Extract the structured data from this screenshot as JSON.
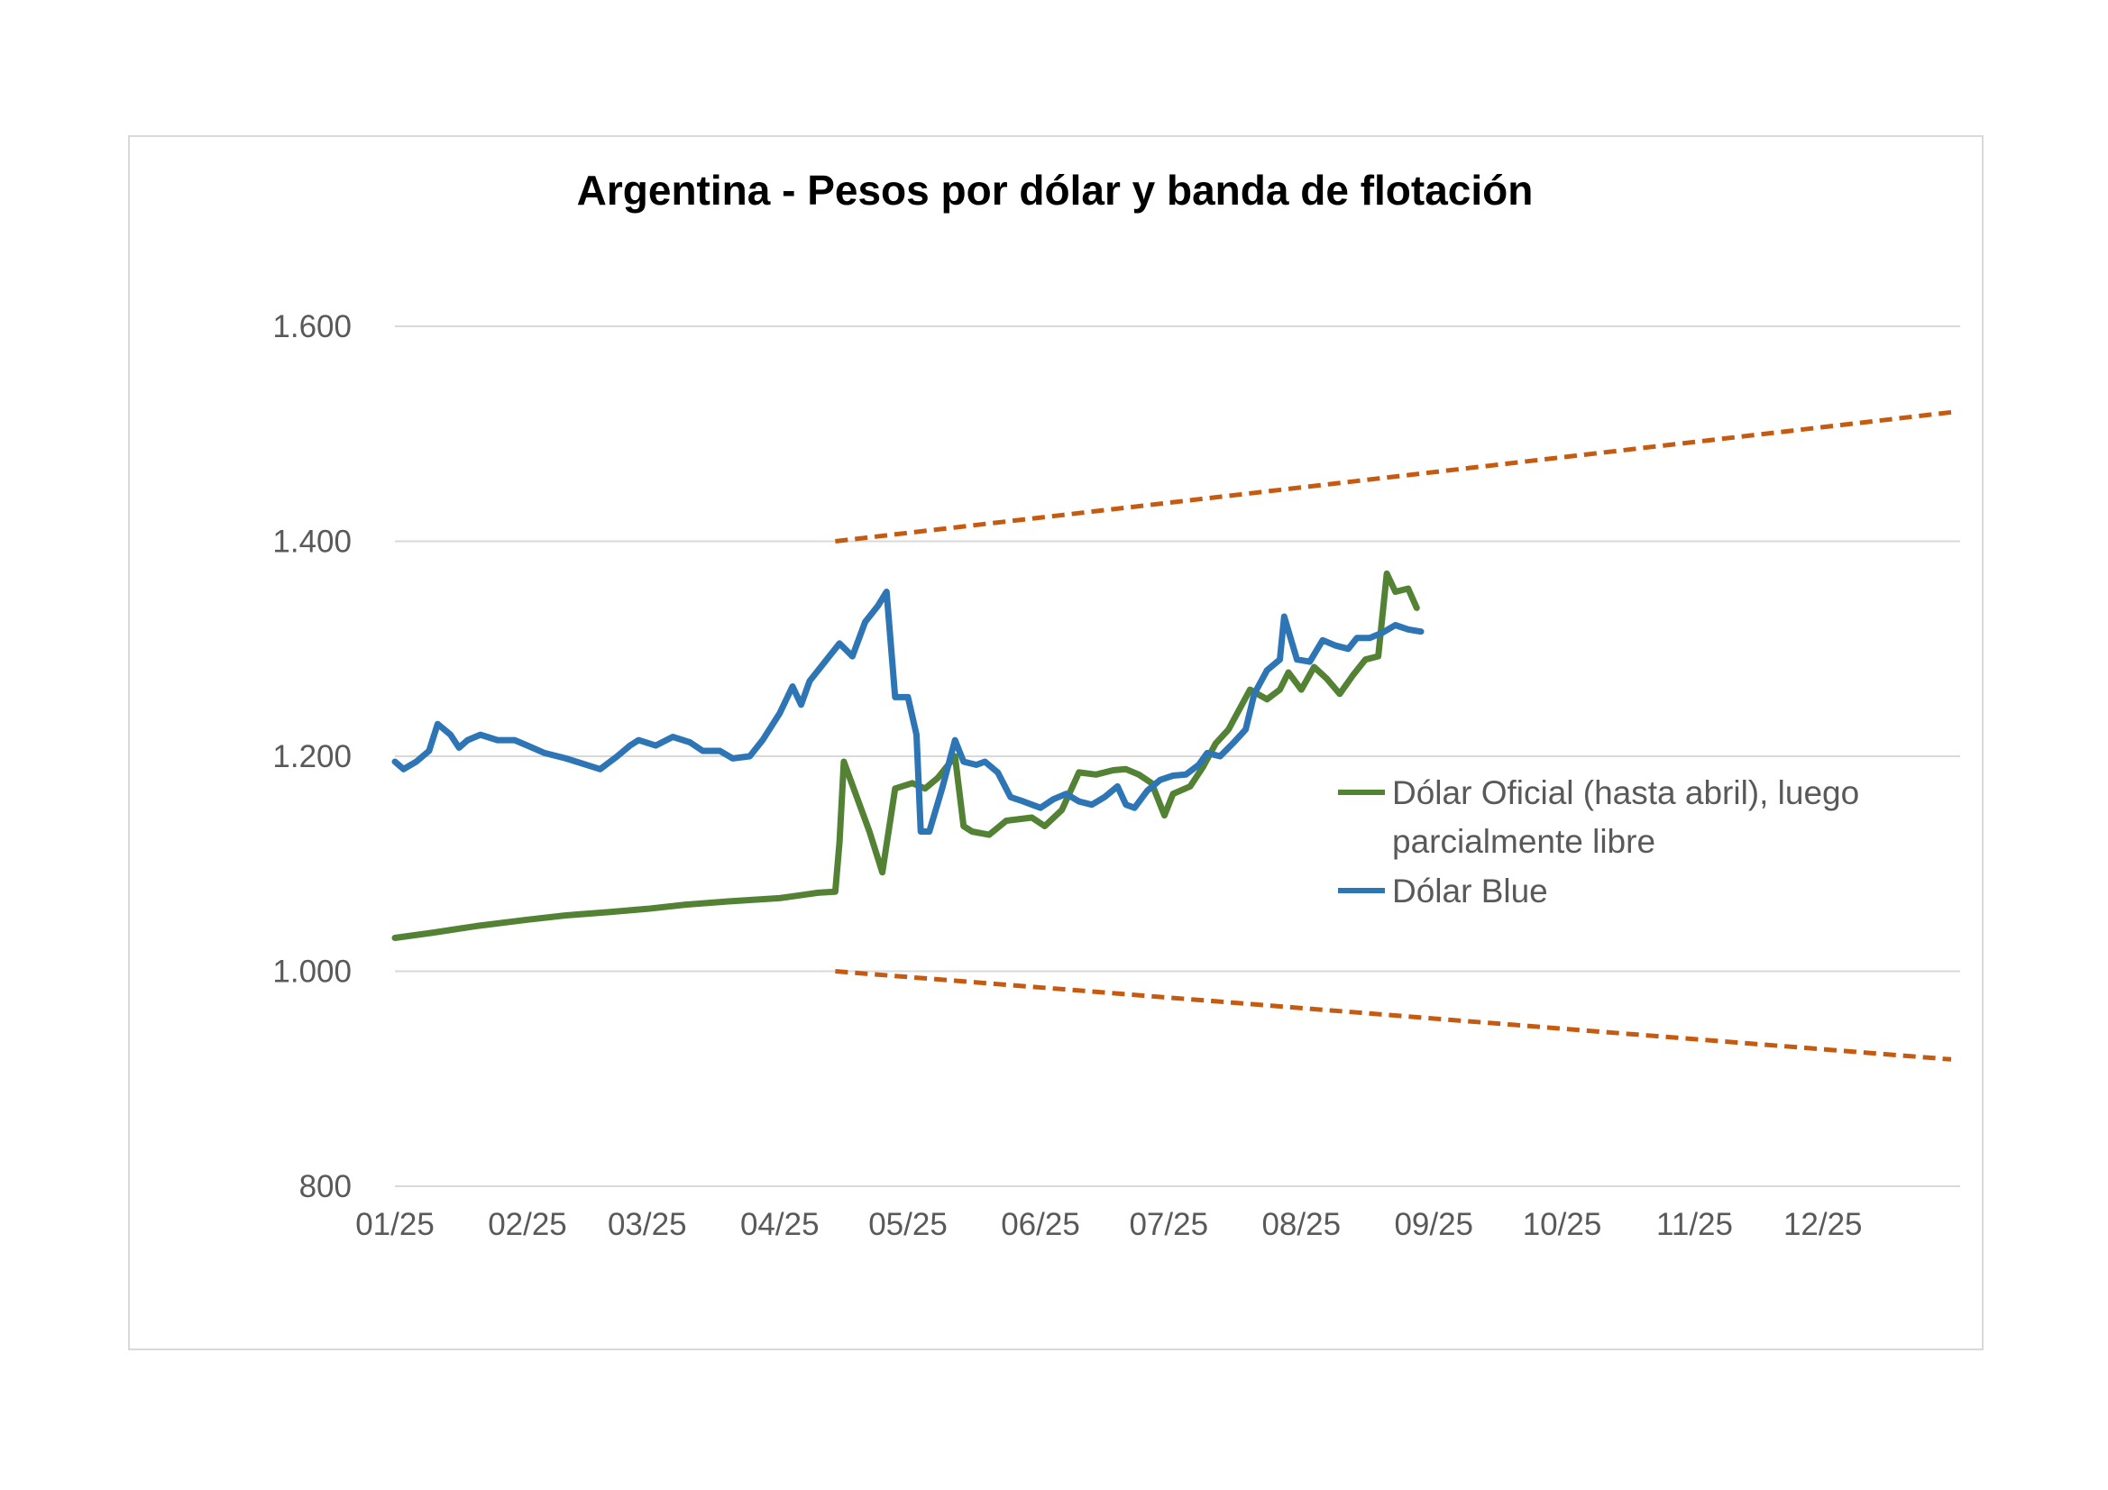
{
  "chart_data": {
    "type": "line",
    "title": "Argentina - Pesos por dólar y banda de flotación",
    "xlabel": "",
    "ylabel": "",
    "x_tick_labels": [
      "01/25",
      "02/25",
      "03/25",
      "04/25",
      "05/25",
      "06/25",
      "07/25",
      "08/25",
      "09/25",
      "10/25",
      "11/25",
      "12/25"
    ],
    "x_tick_dates": [
      "2025-01-01",
      "2025-02-01",
      "2025-03-01",
      "2025-04-01",
      "2025-05-01",
      "2025-06-01",
      "2025-07-01",
      "2025-08-01",
      "2025-09-01",
      "2025-10-01",
      "2025-11-01",
      "2025-12-01"
    ],
    "xlim": [
      "2025-01-01",
      "2025-12-31"
    ],
    "y_tick_labels": [
      "800",
      "1.000",
      "1.200",
      "1.400",
      "1.600"
    ],
    "y_tick_values": [
      800,
      1000,
      1200,
      1400,
      1600
    ],
    "ylim": [
      800,
      1600
    ],
    "grid": true,
    "legend_position": "right",
    "series": [
      {
        "name": "Dólar Oficial (hasta abril), luego parcialmente libre",
        "color": "#548235",
        "style": "solid",
        "points": [
          [
            "2025-01-01",
            1031
          ],
          [
            "2025-01-10",
            1036
          ],
          [
            "2025-01-20",
            1042
          ],
          [
            "2025-02-01",
            1048
          ],
          [
            "2025-02-10",
            1052
          ],
          [
            "2025-02-20",
            1055
          ],
          [
            "2025-03-01",
            1058
          ],
          [
            "2025-03-10",
            1062
          ],
          [
            "2025-03-20",
            1065
          ],
          [
            "2025-04-01",
            1068
          ],
          [
            "2025-04-10",
            1073
          ],
          [
            "2025-04-14",
            1074
          ],
          [
            "2025-04-15",
            1120
          ],
          [
            "2025-04-16",
            1195
          ],
          [
            "2025-04-22",
            1130
          ],
          [
            "2025-04-25",
            1092
          ],
          [
            "2025-04-28",
            1170
          ],
          [
            "2025-05-02",
            1175
          ],
          [
            "2025-05-05",
            1170
          ],
          [
            "2025-05-08",
            1180
          ],
          [
            "2025-05-12",
            1200
          ],
          [
            "2025-05-14",
            1135
          ],
          [
            "2025-05-16",
            1130
          ],
          [
            "2025-05-20",
            1127
          ],
          [
            "2025-05-24",
            1140
          ],
          [
            "2025-05-30",
            1143
          ],
          [
            "2025-06-02",
            1135
          ],
          [
            "2025-06-06",
            1150
          ],
          [
            "2025-06-10",
            1185
          ],
          [
            "2025-06-14",
            1183
          ],
          [
            "2025-06-18",
            1187
          ],
          [
            "2025-06-21",
            1188
          ],
          [
            "2025-06-24",
            1183
          ],
          [
            "2025-06-27",
            1175
          ],
          [
            "2025-06-30",
            1145
          ],
          [
            "2025-07-02",
            1165
          ],
          [
            "2025-07-06",
            1172
          ],
          [
            "2025-07-09",
            1190
          ],
          [
            "2025-07-12",
            1212
          ],
          [
            "2025-07-15",
            1225
          ],
          [
            "2025-07-20",
            1262
          ],
          [
            "2025-07-24",
            1253
          ],
          [
            "2025-07-27",
            1262
          ],
          [
            "2025-07-29",
            1278
          ],
          [
            "2025-08-01",
            1262
          ],
          [
            "2025-08-04",
            1283
          ],
          [
            "2025-08-07",
            1272
          ],
          [
            "2025-08-10",
            1258
          ],
          [
            "2025-08-13",
            1275
          ],
          [
            "2025-08-16",
            1290
          ],
          [
            "2025-08-19",
            1293
          ],
          [
            "2025-08-21",
            1370
          ],
          [
            "2025-08-23",
            1353
          ],
          [
            "2025-08-26",
            1356
          ],
          [
            "2025-08-28",
            1338
          ]
        ]
      },
      {
        "name": "Dólar Blue",
        "color": "#2E75B6",
        "style": "solid",
        "points": [
          [
            "2025-01-01",
            1195
          ],
          [
            "2025-01-03",
            1188
          ],
          [
            "2025-01-06",
            1195
          ],
          [
            "2025-01-09",
            1205
          ],
          [
            "2025-01-11",
            1230
          ],
          [
            "2025-01-14",
            1220
          ],
          [
            "2025-01-16",
            1208
          ],
          [
            "2025-01-18",
            1215
          ],
          [
            "2025-01-21",
            1220
          ],
          [
            "2025-01-25",
            1215
          ],
          [
            "2025-01-29",
            1215
          ],
          [
            "2025-02-01",
            1210
          ],
          [
            "2025-02-05",
            1203
          ],
          [
            "2025-02-10",
            1198
          ],
          [
            "2025-02-14",
            1193
          ],
          [
            "2025-02-18",
            1188
          ],
          [
            "2025-02-22",
            1200
          ],
          [
            "2025-02-25",
            1210
          ],
          [
            "2025-02-27",
            1215
          ],
          [
            "2025-03-03",
            1210
          ],
          [
            "2025-03-07",
            1218
          ],
          [
            "2025-03-11",
            1213
          ],
          [
            "2025-03-14",
            1205
          ],
          [
            "2025-03-18",
            1205
          ],
          [
            "2025-03-21",
            1198
          ],
          [
            "2025-03-25",
            1200
          ],
          [
            "2025-03-28",
            1215
          ],
          [
            "2025-04-01",
            1240
          ],
          [
            "2025-04-04",
            1265
          ],
          [
            "2025-04-06",
            1248
          ],
          [
            "2025-04-08",
            1270
          ],
          [
            "2025-04-12",
            1290
          ],
          [
            "2025-04-15",
            1305
          ],
          [
            "2025-04-18",
            1293
          ],
          [
            "2025-04-21",
            1325
          ],
          [
            "2025-04-24",
            1340
          ],
          [
            "2025-04-26",
            1353
          ],
          [
            "2025-04-28",
            1255
          ],
          [
            "2025-05-01",
            1255
          ],
          [
            "2025-05-03",
            1220
          ],
          [
            "2025-05-04",
            1130
          ],
          [
            "2025-05-06",
            1130
          ],
          [
            "2025-05-09",
            1170
          ],
          [
            "2025-05-12",
            1215
          ],
          [
            "2025-05-14",
            1195
          ],
          [
            "2025-05-17",
            1192
          ],
          [
            "2025-05-19",
            1195
          ],
          [
            "2025-05-22",
            1185
          ],
          [
            "2025-05-25",
            1162
          ],
          [
            "2025-05-28",
            1158
          ],
          [
            "2025-06-01",
            1152
          ],
          [
            "2025-06-04",
            1160
          ],
          [
            "2025-06-07",
            1165
          ],
          [
            "2025-06-10",
            1158
          ],
          [
            "2025-06-13",
            1155
          ],
          [
            "2025-06-16",
            1162
          ],
          [
            "2025-06-19",
            1172
          ],
          [
            "2025-06-21",
            1155
          ],
          [
            "2025-06-23",
            1152
          ],
          [
            "2025-06-26",
            1168
          ],
          [
            "2025-06-29",
            1178
          ],
          [
            "2025-07-02",
            1182
          ],
          [
            "2025-07-05",
            1183
          ],
          [
            "2025-07-08",
            1192
          ],
          [
            "2025-07-10",
            1203
          ],
          [
            "2025-07-13",
            1200
          ],
          [
            "2025-07-16",
            1212
          ],
          [
            "2025-07-19",
            1225
          ],
          [
            "2025-07-21",
            1258
          ],
          [
            "2025-07-24",
            1280
          ],
          [
            "2025-07-27",
            1290
          ],
          [
            "2025-07-28",
            1330
          ],
          [
            "2025-07-31",
            1290
          ],
          [
            "2025-08-03",
            1288
          ],
          [
            "2025-08-06",
            1308
          ],
          [
            "2025-08-09",
            1303
          ],
          [
            "2025-08-12",
            1300
          ],
          [
            "2025-08-14",
            1310
          ],
          [
            "2025-08-17",
            1310
          ],
          [
            "2025-08-20",
            1315
          ],
          [
            "2025-08-23",
            1322
          ],
          [
            "2025-08-26",
            1318
          ],
          [
            "2025-08-29",
            1316
          ]
        ]
      },
      {
        "color": "#C55A11",
        "style": "dashed",
        "points": [
          [
            "2025-04-14",
            1400
          ],
          [
            "2025-12-31",
            1520
          ]
        ]
      },
      {
        "color": "#C55A11",
        "style": "dashed",
        "points": [
          [
            "2025-04-14",
            1000
          ],
          [
            "2025-12-31",
            918
          ]
        ]
      }
    ]
  }
}
